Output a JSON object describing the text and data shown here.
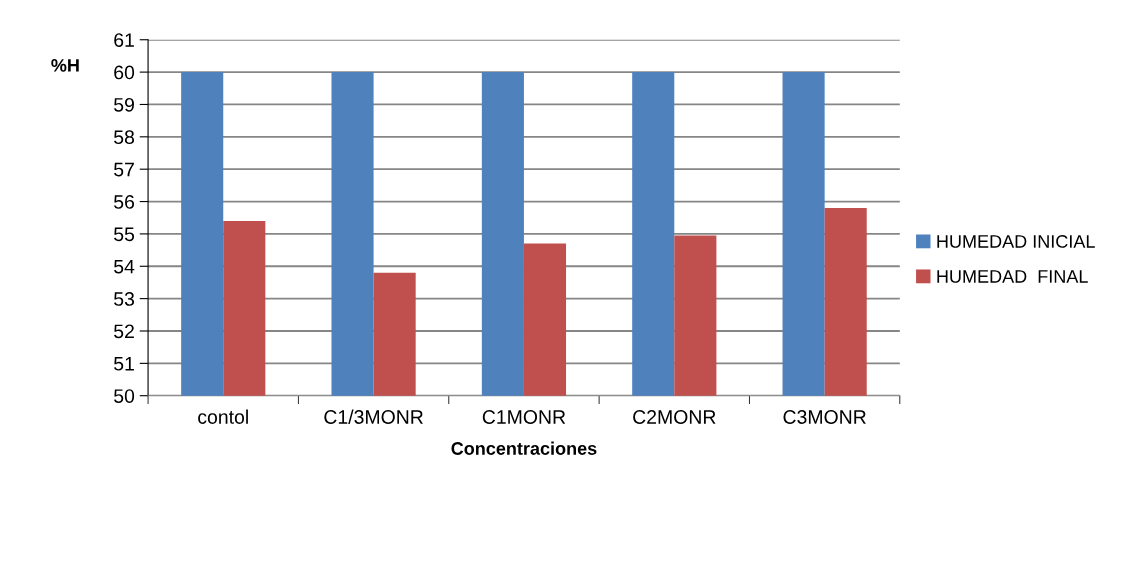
{
  "chart_data": {
    "type": "bar",
    "xlabel": "Concentraciones",
    "ylabel": "%H",
    "categories": [
      "contol",
      "C1/3MONR",
      "C1MONR",
      "C2MONR",
      "C3MONR"
    ],
    "series": [
      {
        "name": "HUMEDAD INICIAL",
        "color": "#4f81bd",
        "values": [
          60,
          60,
          60,
          60,
          60
        ]
      },
      {
        "name": "HUMEDAD  FINAL",
        "color": "#c0504d",
        "values": [
          55.4,
          53.8,
          54.7,
          54.95,
          55.8
        ]
      }
    ],
    "ylim": [
      50,
      61
    ],
    "yticks": [
      50,
      51,
      52,
      53,
      54,
      55,
      56,
      57,
      58,
      59,
      60,
      61
    ],
    "grid": "y",
    "legend": "right"
  }
}
